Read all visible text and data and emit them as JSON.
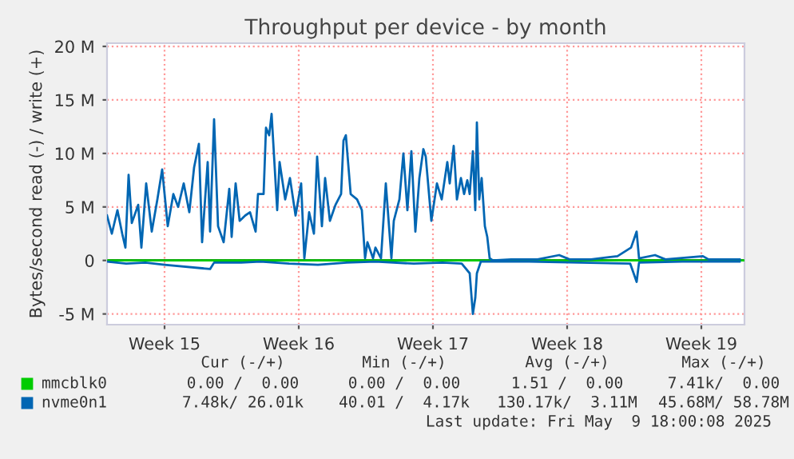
{
  "chart_data": {
    "type": "line",
    "title": "Throughput per device - by month",
    "ylabel": "Bytes/second read (-) / write (+)",
    "xlim": [
      "2025-04-07T12:00",
      "2025-05-10T18:00"
    ],
    "ylim": [
      -6,
      20.3
    ],
    "xticks": [
      {
        "value": "2025-04-10T12:00",
        "label": "Week 15"
      },
      {
        "value": "2025-04-17T12:00",
        "label": "Week 16"
      },
      {
        "value": "2025-04-24T12:00",
        "label": "Week 17"
      },
      {
        "value": "2025-05-01T12:00",
        "label": "Week 18"
      },
      {
        "value": "2025-05-08T12:00",
        "label": "Week 19"
      }
    ],
    "yticks": [
      {
        "value": -5,
        "label": "-5 M"
      },
      0,
      {
        "value": 5,
        "label": "5 M"
      },
      {
        "value": 10,
        "label": "10 M"
      },
      {
        "value": 15,
        "label": "15 M"
      },
      {
        "value": 20,
        "label": "20 M"
      }
    ],
    "grid": true,
    "legend": "bottom",
    "series": [
      {
        "name": "mmcblk0",
        "color": "#00cc00",
        "x": [
          "2025-04-07T12:00",
          "2025-05-10T18:00"
        ],
        "values": [
          0,
          0
        ]
      },
      {
        "name": "nvme0n1",
        "color": "#0066b3",
        "x": [
          "2025-04-07T12:00",
          "2025-04-07T18:00",
          "2025-04-08T01:00",
          "2025-04-08T07:00",
          "2025-04-08T11:00",
          "2025-04-08T15:00",
          "2025-04-08T19:00",
          "2025-04-09T03:00",
          "2025-04-09T07:00",
          "2025-04-09T13:00",
          "2025-04-09T20:00",
          "2025-04-10T03:00",
          "2025-04-10T09:00",
          "2025-04-10T16:00",
          "2025-04-10T23:00",
          "2025-04-11T05:00",
          "2025-04-11T12:00",
          "2025-04-11T19:00",
          "2025-04-12T01:00",
          "2025-04-12T07:00",
          "2025-04-12T11:00",
          "2025-04-12T18:00",
          "2025-04-12T21:00",
          "2025-04-13T02:00",
          "2025-04-13T07:00",
          "2025-04-13T14:00",
          "2025-04-13T21:00",
          "2025-04-14T00:00",
          "2025-04-14T05:00",
          "2025-04-14T10:00",
          "2025-04-14T17:00",
          "2025-04-14T23:00",
          "2025-04-15T06:00",
          "2025-04-15T09:00",
          "2025-04-15T16:00",
          "2025-04-15T19:00",
          "2025-04-15T23:00",
          "2025-04-16T02:00",
          "2025-04-16T09:00",
          "2025-04-16T12:00",
          "2025-04-16T19:00",
          "2025-04-17T01:00",
          "2025-04-17T08:00",
          "2025-04-17T15:00",
          "2025-04-17T19:00",
          "2025-04-18T01:00",
          "2025-04-18T07:00",
          "2025-04-18T11:00",
          "2025-04-18T17:00",
          "2025-04-18T21:00",
          "2025-04-19T03:00",
          "2025-04-19T10:00",
          "2025-04-19T17:00",
          "2025-04-19T20:00",
          "2025-04-19T23:00",
          "2025-04-20T05:00",
          "2025-04-20T13:00",
          "2025-04-20T19:00",
          "2025-04-20T23:00",
          "2025-04-21T02:00",
          "2025-04-21T09:00",
          "2025-04-21T12:00",
          "2025-04-21T19:00",
          "2025-04-22T01:00",
          "2025-04-22T08:00",
          "2025-04-22T11:00",
          "2025-04-22T18:00",
          "2025-04-22T23:00",
          "2025-04-23T04:00",
          "2025-04-23T09:00",
          "2025-04-23T14:00",
          "2025-04-23T19:00",
          "2025-04-24T00:00",
          "2025-04-24T03:00",
          "2025-04-24T10:00",
          "2025-04-24T17:00",
          "2025-04-24T23:00",
          "2025-04-25T06:00",
          "2025-04-25T09:00",
          "2025-04-25T14:00",
          "2025-04-25T18:00",
          "2025-04-25T23:00",
          "2025-04-26T03:00",
          "2025-04-26T07:00",
          "2025-04-26T10:00",
          "2025-04-26T14:00",
          "2025-04-26T17:00",
          "2025-04-26T19:00",
          "2025-04-26T22:00",
          "2025-04-27T01:00",
          "2025-04-27T05:00",
          "2025-04-27T08:00",
          "2025-04-27T11:00",
          "2025-04-27T15:00",
          "2025-04-28T14:00",
          "2025-04-29T23:00",
          "2025-05-01T02:00",
          "2025-05-01T15:00",
          "2025-05-02T18:00",
          "2025-05-04T03:00",
          "2025-05-04T20:00",
          "2025-05-05T03:00",
          "2025-05-05T06:00",
          "2025-05-06T02:00",
          "2025-05-06T15:00",
          "2025-05-08T14:00",
          "2025-05-08T21:00",
          "2025-05-10T12:00"
        ],
        "values": [
          4.2,
          2.5,
          4.7,
          2.5,
          1.2,
          8.0,
          3.5,
          5.2,
          1.2,
          7.2,
          2.7,
          5.7,
          8.5,
          3.2,
          6.2,
          5.0,
          7.2,
          4.5,
          8.7,
          10.9,
          1.7,
          9.2,
          2.7,
          13.2,
          3.2,
          1.7,
          6.7,
          2.2,
          7.2,
          3.7,
          4.2,
          4.5,
          2.7,
          6.2,
          6.2,
          12.4,
          11.7,
          13.7,
          4.7,
          9.2,
          5.7,
          7.7,
          4.2,
          7.2,
          0.2,
          4.5,
          2.5,
          9.7,
          3.2,
          7.7,
          3.7,
          5.2,
          6.2,
          11.2,
          11.7,
          6.2,
          5.7,
          4.7,
          0.2,
          1.7,
          0.2,
          1.2,
          0.2,
          7.2,
          0.2,
          3.7,
          5.7,
          10.0,
          4.7,
          10.2,
          2.7,
          7.7,
          10.4,
          9.7,
          3.7,
          7.2,
          5.7,
          9.2,
          7.2,
          10.7,
          5.7,
          7.7,
          6.2,
          7.5,
          6.2,
          10.2,
          4.7,
          12.9,
          5.7,
          7.7,
          3.2,
          2.2,
          0.2,
          0.0,
          0.1,
          0.1,
          0.5,
          0.1,
          0.1,
          0.4,
          1.2,
          2.7,
          0.2,
          0.5,
          0.1,
          0.4,
          0.1,
          0.1
        ]
      },
      {
        "color": "#0066b3",
        "x": [
          "2025-04-07T12:00",
          "2025-04-08T12:00",
          "2025-04-09T12:00",
          "2025-04-10T12:00",
          "2025-04-12T21:00",
          "2025-04-13T02:00",
          "2025-04-14T12:00",
          "2025-04-15T12:00",
          "2025-04-17T00:00",
          "2025-04-18T12:00",
          "2025-04-20T00:00",
          "2025-04-21T12:00",
          "2025-04-23T12:00",
          "2025-04-25T00:00",
          "2025-04-26T00:00",
          "2025-04-26T10:00",
          "2025-04-26T14:00",
          "2025-04-26T17:00",
          "2025-04-26T19:00",
          "2025-04-27T00:00",
          "2025-04-29T12:00",
          "2025-05-04T19:00",
          "2025-05-05T03:00",
          "2025-05-05T06:00",
          "2025-05-07T12:00",
          "2025-05-10T12:00"
        ],
        "values": [
          -0.1,
          -0.3,
          -0.2,
          -0.4,
          -0.8,
          -0.2,
          -0.2,
          -0.1,
          -0.3,
          -0.4,
          -0.2,
          -0.1,
          -0.3,
          -0.2,
          -0.3,
          -1.2,
          -5.0,
          -3.5,
          -1.2,
          -0.1,
          -0.1,
          -0.3,
          -2.0,
          -0.2,
          -0.1,
          -0.1
        ]
      }
    ],
    "annotations": [
      "Cur (-/+)",
      "Min (-/+)",
      "Avg (-/+)",
      "Max (-/+)",
      "0.00 /  0.00",
      "0.00 /  0.00",
      "1.51 /  0.00",
      "7.41k/  0.00",
      "7.48k/ 26.01k",
      "40.01 /  4.17k",
      "130.17k/  3.11M",
      "45.68M/ 58.78M",
      "Last update: Fri May  9 18:00:08 2025"
    ]
  }
}
